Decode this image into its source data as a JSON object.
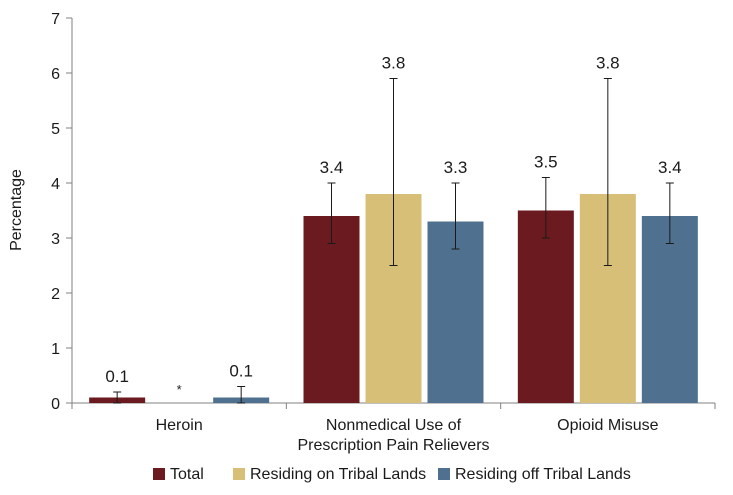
{
  "chart_data": {
    "type": "bar",
    "title": "",
    "xlabel": "",
    "ylabel": "Percentage",
    "ylim": [
      0,
      7
    ],
    "yticks": [
      "0",
      "1",
      "2",
      "3",
      "4",
      "5",
      "6",
      "7"
    ],
    "categories": [
      [
        "Heroin"
      ],
      [
        "Nonmedical Use of",
        "Prescription Pain Relievers"
      ],
      [
        "Opioid Misuse"
      ]
    ],
    "series": [
      {
        "name": "Total",
        "color": "#6b1a1f",
        "values": [
          0.1,
          3.4,
          3.5
        ],
        "labels": [
          "0.1",
          "3.4",
          "3.5"
        ],
        "error_low": [
          0.0,
          2.9,
          3.0
        ],
        "error_high": [
          0.2,
          4.0,
          4.1
        ]
      },
      {
        "name": "Residing on Tribal Lands",
        "color": "#d8bf77",
        "values": [
          null,
          3.8,
          3.8
        ],
        "labels": [
          "*",
          "3.8",
          "3.8"
        ],
        "error_low": [
          null,
          2.5,
          2.5
        ],
        "error_high": [
          null,
          5.9,
          5.9
        ]
      },
      {
        "name": "Residing off Tribal Lands",
        "color": "#4f718f",
        "values": [
          0.1,
          3.3,
          3.4
        ],
        "labels": [
          "0.1",
          "3.3",
          "3.4"
        ],
        "error_low": [
          0.0,
          2.8,
          2.9
        ],
        "error_high": [
          0.3,
          4.0,
          4.0
        ]
      }
    ],
    "legend_position": "bottom"
  }
}
